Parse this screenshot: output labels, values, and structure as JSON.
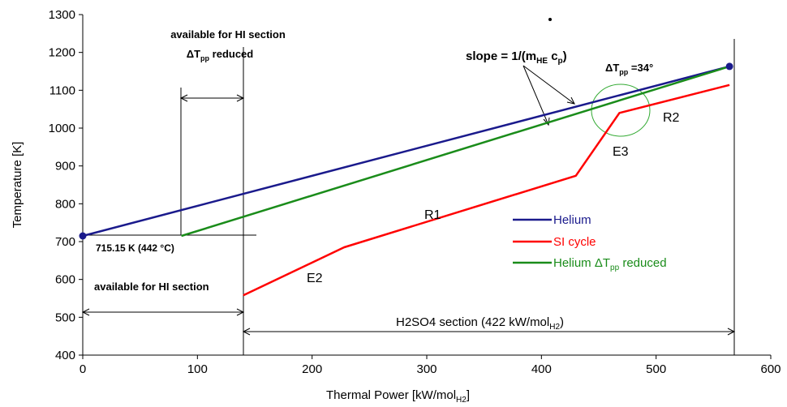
{
  "chart_data": {
    "type": "line",
    "title": "",
    "xlabel": "Thermal Power  [kW/mol",
    "xlabel_sub": "H2",
    "xlabel_close": "]",
    "ylabel": "Temperature [K]",
    "xlim": [
      0,
      600
    ],
    "ylim": [
      400,
      1300
    ],
    "x_ticks": [
      "0",
      "100",
      "200",
      "300",
      "400",
      "500",
      "600"
    ],
    "y_ticks": [
      "400",
      "500",
      "600",
      "700",
      "800",
      "900",
      "1000",
      "1100",
      "1200",
      "1300"
    ],
    "grid": false,
    "legend_position": "center-right",
    "series": [
      {
        "name": "Helium",
        "color": "#1a1a8c",
        "x": [
          0,
          564
        ],
        "y": [
          715,
          1163
        ]
      },
      {
        "name": "SI cycle",
        "color": "#ff0000",
        "x": [
          140,
          228,
          430,
          468,
          564
        ],
        "y": [
          558,
          685,
          874,
          1040,
          1114
        ]
      },
      {
        "name": "Helium ΔT",
        "name_sub": "pp",
        "name_suffix": " reduced",
        "color": "#1a8c1a",
        "x": [
          86,
          564
        ],
        "y": [
          715,
          1163
        ]
      }
    ],
    "markers": [
      {
        "x": 0,
        "y": 715,
        "color": "#1a1a8c"
      },
      {
        "x": 564,
        "y": 1163,
        "color": "#1a1a8c"
      }
    ],
    "annotations": {
      "hi_top_line1": "available for HI section",
      "hi_top_dt": "ΔT",
      "hi_top_dt_sub": "pp",
      "hi_top_dt_suffix": " reduced",
      "hi_bottom": "available for HI section",
      "temp_label": "715.15 K  (442 °C)",
      "slope_label": "slope = 1/(m",
      "slope_sub": "HE",
      "slope_mid": " c",
      "slope_sub2": "p",
      "slope_close": ")",
      "dt34_prefix": "ΔT",
      "dt34_sub": "pp",
      "dt34_suffix": " =34°",
      "r1": "R1",
      "r2": "R2",
      "e2": "E2",
      "e3": "E3",
      "h2so4_label": "H2SO4 section (422 kW/mol",
      "h2so4_sub": "H2",
      "h2so4_close": ")"
    }
  }
}
